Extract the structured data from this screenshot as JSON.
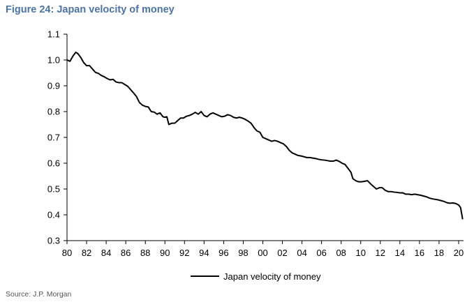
{
  "figure_title": "Figure 24: Japan velocity of money",
  "source": "Source: J.P. Morgan",
  "colors": {
    "title": "#4a74a8",
    "line": "#000000",
    "axis": "#000000"
  },
  "chart_data": {
    "type": "line",
    "title": "Figure 24: Japan velocity of money",
    "xlabel": "",
    "ylabel": "",
    "xlim": [
      1980,
      2020.5
    ],
    "ylim": [
      0.3,
      1.1
    ],
    "x_tick_values": [
      1980,
      1982,
      1984,
      1986,
      1988,
      1990,
      1992,
      1994,
      1996,
      1998,
      2000,
      2002,
      2004,
      2006,
      2008,
      2010,
      2012,
      2014,
      2016,
      2018,
      2020
    ],
    "x_tick_labels": [
      "80",
      "82",
      "84",
      "86",
      "88",
      "90",
      "92",
      "94",
      "96",
      "98",
      "00",
      "02",
      "04",
      "06",
      "08",
      "10",
      "12",
      "14",
      "16",
      "18",
      "20"
    ],
    "y_tick_values": [
      0.3,
      0.4,
      0.5,
      0.6,
      0.7,
      0.8,
      0.9,
      1.0,
      1.1
    ],
    "y_tick_labels": [
      "0.3",
      "0.4",
      "0.5",
      "0.6",
      "0.7",
      "0.8",
      "0.9",
      "1.0",
      "1.1"
    ],
    "grid": false,
    "legend_position": "bottom-center",
    "series": [
      {
        "name": "Japan velocity of money",
        "x": [
          1980.0,
          1980.3,
          1980.6,
          1980.9,
          1981.1,
          1981.4,
          1981.7,
          1982.0,
          1982.3,
          1982.6,
          1982.9,
          1983.2,
          1983.5,
          1983.8,
          1984.1,
          1984.4,
          1984.7,
          1985.0,
          1985.3,
          1985.6,
          1985.9,
          1986.2,
          1986.5,
          1986.8,
          1987.1,
          1987.4,
          1987.7,
          1988.0,
          1988.3,
          1988.6,
          1988.9,
          1989.2,
          1989.5,
          1989.8,
          1990.0,
          1990.2,
          1990.4,
          1990.7,
          1991.0,
          1991.3,
          1991.6,
          1991.9,
          1992.2,
          1992.5,
          1992.8,
          1993.1,
          1993.4,
          1993.7,
          1994.0,
          1994.3,
          1994.6,
          1994.9,
          1995.2,
          1995.5,
          1995.8,
          1996.1,
          1996.4,
          1996.7,
          1997.0,
          1997.3,
          1997.6,
          1997.9,
          1998.2,
          1998.5,
          1998.8,
          1999.1,
          1999.4,
          1999.7,
          2000.0,
          2000.3,
          2000.6,
          2000.9,
          2001.2,
          2001.5,
          2001.8,
          2002.1,
          2002.4,
          2002.7,
          2003.0,
          2003.3,
          2003.6,
          2003.9,
          2004.2,
          2004.5,
          2004.8,
          2005.1,
          2005.4,
          2005.7,
          2006.0,
          2006.3,
          2006.6,
          2006.9,
          2007.2,
          2007.5,
          2007.8,
          2008.1,
          2008.4,
          2008.7,
          2009.0,
          2009.2,
          2009.5,
          2009.8,
          2010.1,
          2010.4,
          2010.7,
          2011.0,
          2011.3,
          2011.6,
          2011.9,
          2012.2,
          2012.5,
          2012.8,
          2013.1,
          2013.4,
          2013.7,
          2014.0,
          2014.3,
          2014.6,
          2014.9,
          2015.2,
          2015.5,
          2015.8,
          2016.1,
          2016.4,
          2016.7,
          2017.0,
          2017.3,
          2017.6,
          2017.9,
          2018.2,
          2018.5,
          2018.8,
          2019.1,
          2019.4,
          2019.7,
          2020.0,
          2020.2,
          2020.4
        ],
        "values": [
          1.0,
          0.995,
          1.015,
          1.03,
          1.025,
          1.01,
          0.99,
          0.978,
          0.978,
          0.965,
          0.952,
          0.948,
          0.94,
          0.935,
          0.928,
          0.923,
          0.925,
          0.915,
          0.912,
          0.912,
          0.905,
          0.898,
          0.885,
          0.872,
          0.858,
          0.835,
          0.825,
          0.82,
          0.818,
          0.8,
          0.798,
          0.79,
          0.795,
          0.78,
          0.778,
          0.78,
          0.75,
          0.755,
          0.755,
          0.765,
          0.775,
          0.775,
          0.782,
          0.785,
          0.79,
          0.797,
          0.79,
          0.8,
          0.785,
          0.78,
          0.79,
          0.795,
          0.79,
          0.785,
          0.78,
          0.782,
          0.788,
          0.785,
          0.778,
          0.775,
          0.778,
          0.775,
          0.77,
          0.763,
          0.755,
          0.738,
          0.725,
          0.72,
          0.7,
          0.695,
          0.69,
          0.685,
          0.688,
          0.685,
          0.68,
          0.675,
          0.665,
          0.65,
          0.64,
          0.635,
          0.63,
          0.628,
          0.625,
          0.622,
          0.622,
          0.62,
          0.618,
          0.615,
          0.613,
          0.612,
          0.61,
          0.608,
          0.608,
          0.612,
          0.607,
          0.6,
          0.595,
          0.58,
          0.565,
          0.54,
          0.532,
          0.528,
          0.528,
          0.53,
          0.532,
          0.52,
          0.51,
          0.5,
          0.505,
          0.505,
          0.495,
          0.49,
          0.49,
          0.488,
          0.487,
          0.485,
          0.485,
          0.48,
          0.48,
          0.478,
          0.48,
          0.478,
          0.476,
          0.473,
          0.47,
          0.465,
          0.462,
          0.46,
          0.458,
          0.455,
          0.452,
          0.447,
          0.445,
          0.446,
          0.444,
          0.438,
          0.428,
          0.385
        ]
      }
    ]
  }
}
